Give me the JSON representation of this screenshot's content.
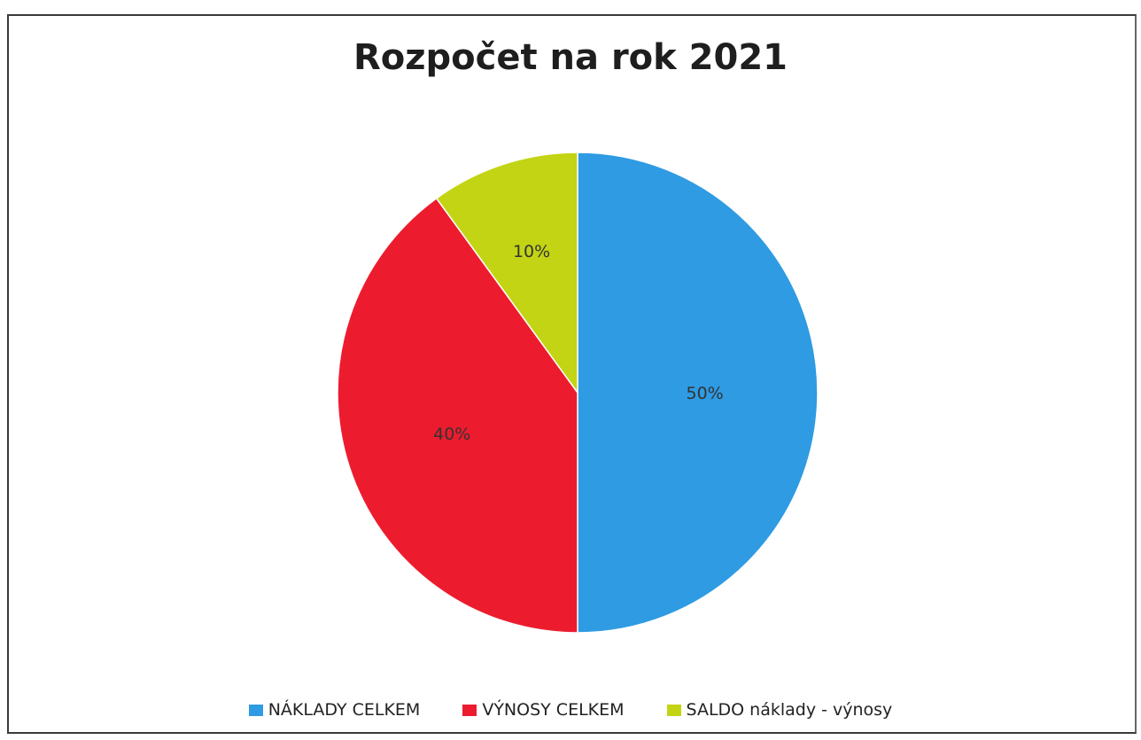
{
  "chart_data": {
    "type": "pie",
    "title": "Rozpočet na rok 2021",
    "categories": [
      "NÁKLADY CELKEM",
      "VÝNOSY CELKEM",
      "SALDO náklady - výnosy"
    ],
    "values": [
      50,
      40,
      10
    ],
    "data_labels": [
      "50%",
      "40%",
      "10%"
    ],
    "colors": [
      "#2e9be3",
      "#ec1c2e",
      "#c3d414"
    ],
    "legend_position": "bottom"
  }
}
